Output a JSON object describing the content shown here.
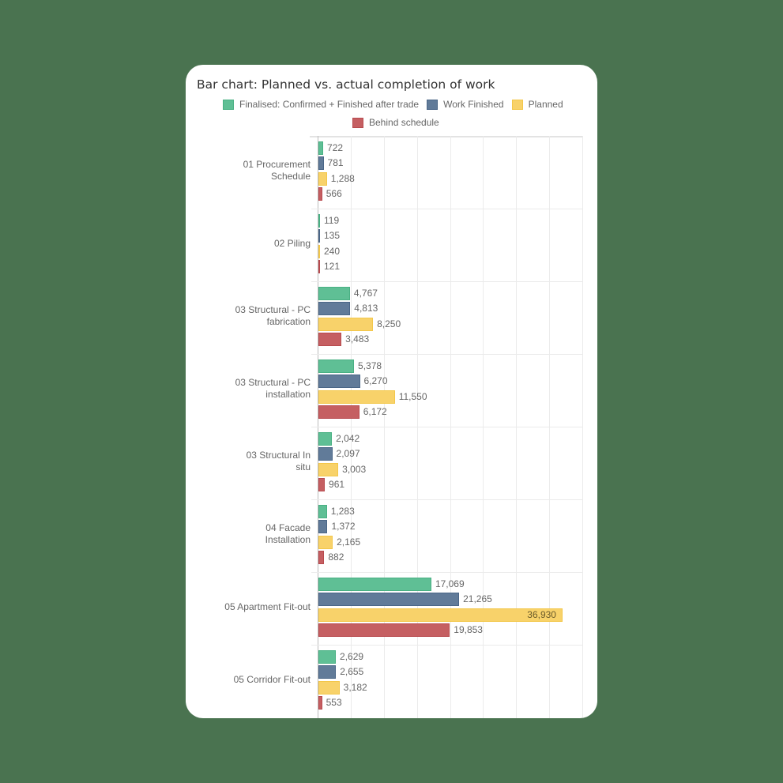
{
  "chart_data": {
    "type": "bar",
    "orientation": "horizontal",
    "title": "Bar chart: Planned vs. actual completion of work",
    "xlabel": "",
    "ylabel": "",
    "xlim": [
      0,
      40000
    ],
    "grid": true,
    "legend_position": "top",
    "categories": [
      [
        "01 Procurement",
        "Schedule"
      ],
      [
        "02 Piling"
      ],
      [
        "03 Structural - PC",
        "fabrication"
      ],
      [
        "03 Structural - PC",
        "installation"
      ],
      [
        "03 Structural In",
        "situ"
      ],
      [
        "04 Facade",
        "Installation"
      ],
      [
        "05 Apartment Fit-out"
      ],
      [
        "05 Corridor Fit-out"
      ]
    ],
    "series": [
      {
        "name": "Finalised: Confirmed + Finished after trade",
        "color": "#5fbf95",
        "border": "#49b083",
        "values": [
          722,
          119,
          4767,
          5378,
          2042,
          1283,
          17069,
          2629
        ],
        "labels": [
          "722",
          "119",
          "4,767",
          "5,378",
          "2,042",
          "1,283",
          "17,069",
          "2,629"
        ]
      },
      {
        "name": "Work Finished",
        "color": "#617b99",
        "border": "#4a6687",
        "values": [
          781,
          135,
          4813,
          6270,
          2097,
          1372,
          21265,
          2655
        ],
        "labels": [
          "781",
          "135",
          "4,813",
          "6,270",
          "2,097",
          "1,372",
          "21,265",
          "2,655"
        ]
      },
      {
        "name": "Planned",
        "color": "#f8d26a",
        "border": "#f3c74a",
        "values": [
          1288,
          240,
          8250,
          11550,
          3003,
          2165,
          36930,
          3182
        ],
        "labels": [
          "1,288",
          "240",
          "8,250",
          "11,550",
          "3,003",
          "2,165",
          "36,930",
          "3,182"
        ]
      },
      {
        "name": "Behind schedule",
        "color": "#c55f62",
        "border": "#b84a4e",
        "values": [
          566,
          121,
          3483,
          6172,
          961,
          882,
          19853,
          553
        ],
        "labels": [
          "566",
          "121",
          "3,483",
          "6,172",
          "961",
          "882",
          "19,853",
          "553"
        ]
      }
    ]
  },
  "legend": {
    "items": [
      {
        "label": "Finalised: Confirmed + Finished after trade"
      },
      {
        "label": "Work Finished"
      },
      {
        "label": "Planned"
      },
      {
        "label": "Behind schedule"
      }
    ]
  }
}
